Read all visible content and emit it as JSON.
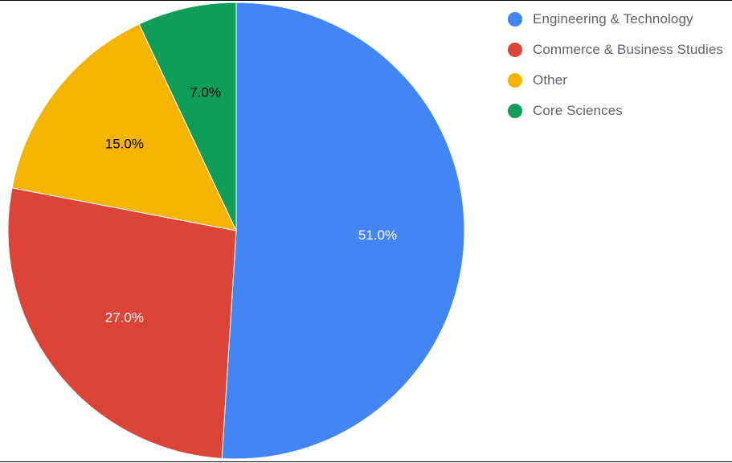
{
  "chart_data": {
    "type": "pie",
    "title": "",
    "start_angle_deg": 0,
    "direction": "clockwise",
    "slices": [
      {
        "label": "Engineering & Technology",
        "value": 51.0,
        "display": "51.0%",
        "color": "#4285F4",
        "label_color": "#ffffff"
      },
      {
        "label": "Commerce & Business Studies",
        "value": 27.0,
        "display": "27.0%",
        "color": "#DB4437",
        "label_color": "#ffffff"
      },
      {
        "label": "Other",
        "value": 15.0,
        "display": "15.0%",
        "color": "#F4B400",
        "label_color": "#000000"
      },
      {
        "label": "Core Sciences",
        "value": 7.0,
        "display": "7.0%",
        "color": "#0F9D58",
        "label_color": "#000000"
      }
    ],
    "legend_position": "top-right"
  }
}
